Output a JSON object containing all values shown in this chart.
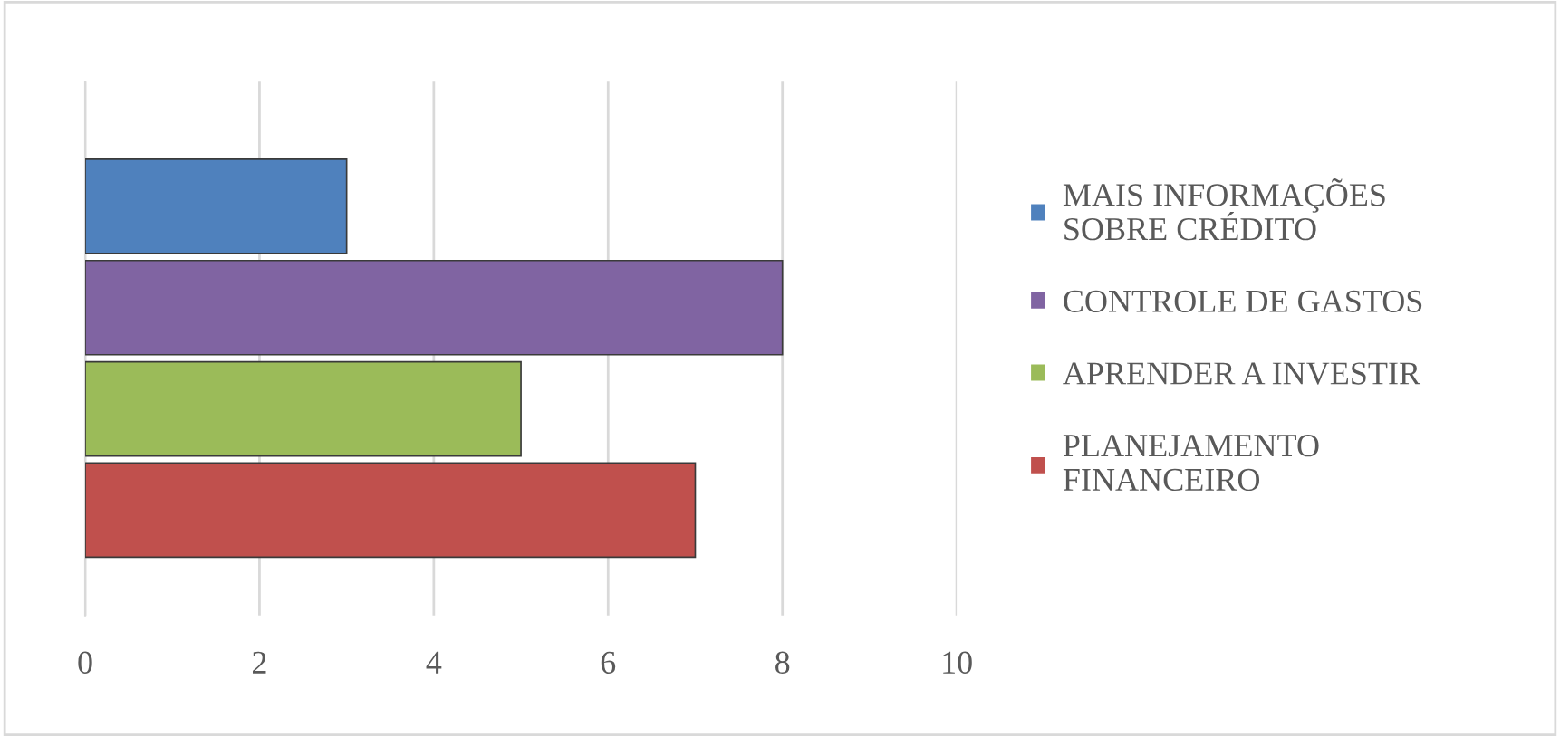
{
  "chart_data": {
    "type": "bar",
    "orientation": "horizontal",
    "categories": [
      null
    ],
    "series": [
      {
        "name": "MAIS INFORMAÇÕES\nSOBRE CRÉDITO",
        "color": "#4f81bd",
        "values": [
          3
        ]
      },
      {
        "name": "CONTROLE DE GASTOS",
        "color": "#8064a2",
        "values": [
          8
        ]
      },
      {
        "name": "APRENDER A INVESTIR",
        "color": "#9bbb59",
        "values": [
          5
        ]
      },
      {
        "name": "PLANEJAMENTO\nFINANCEIRO",
        "color": "#c0504d",
        "values": [
          7
        ]
      }
    ],
    "xlim": [
      0,
      10
    ],
    "xticks": [
      0,
      2,
      4,
      6,
      8,
      10
    ],
    "grid": "x",
    "legend": "right"
  }
}
